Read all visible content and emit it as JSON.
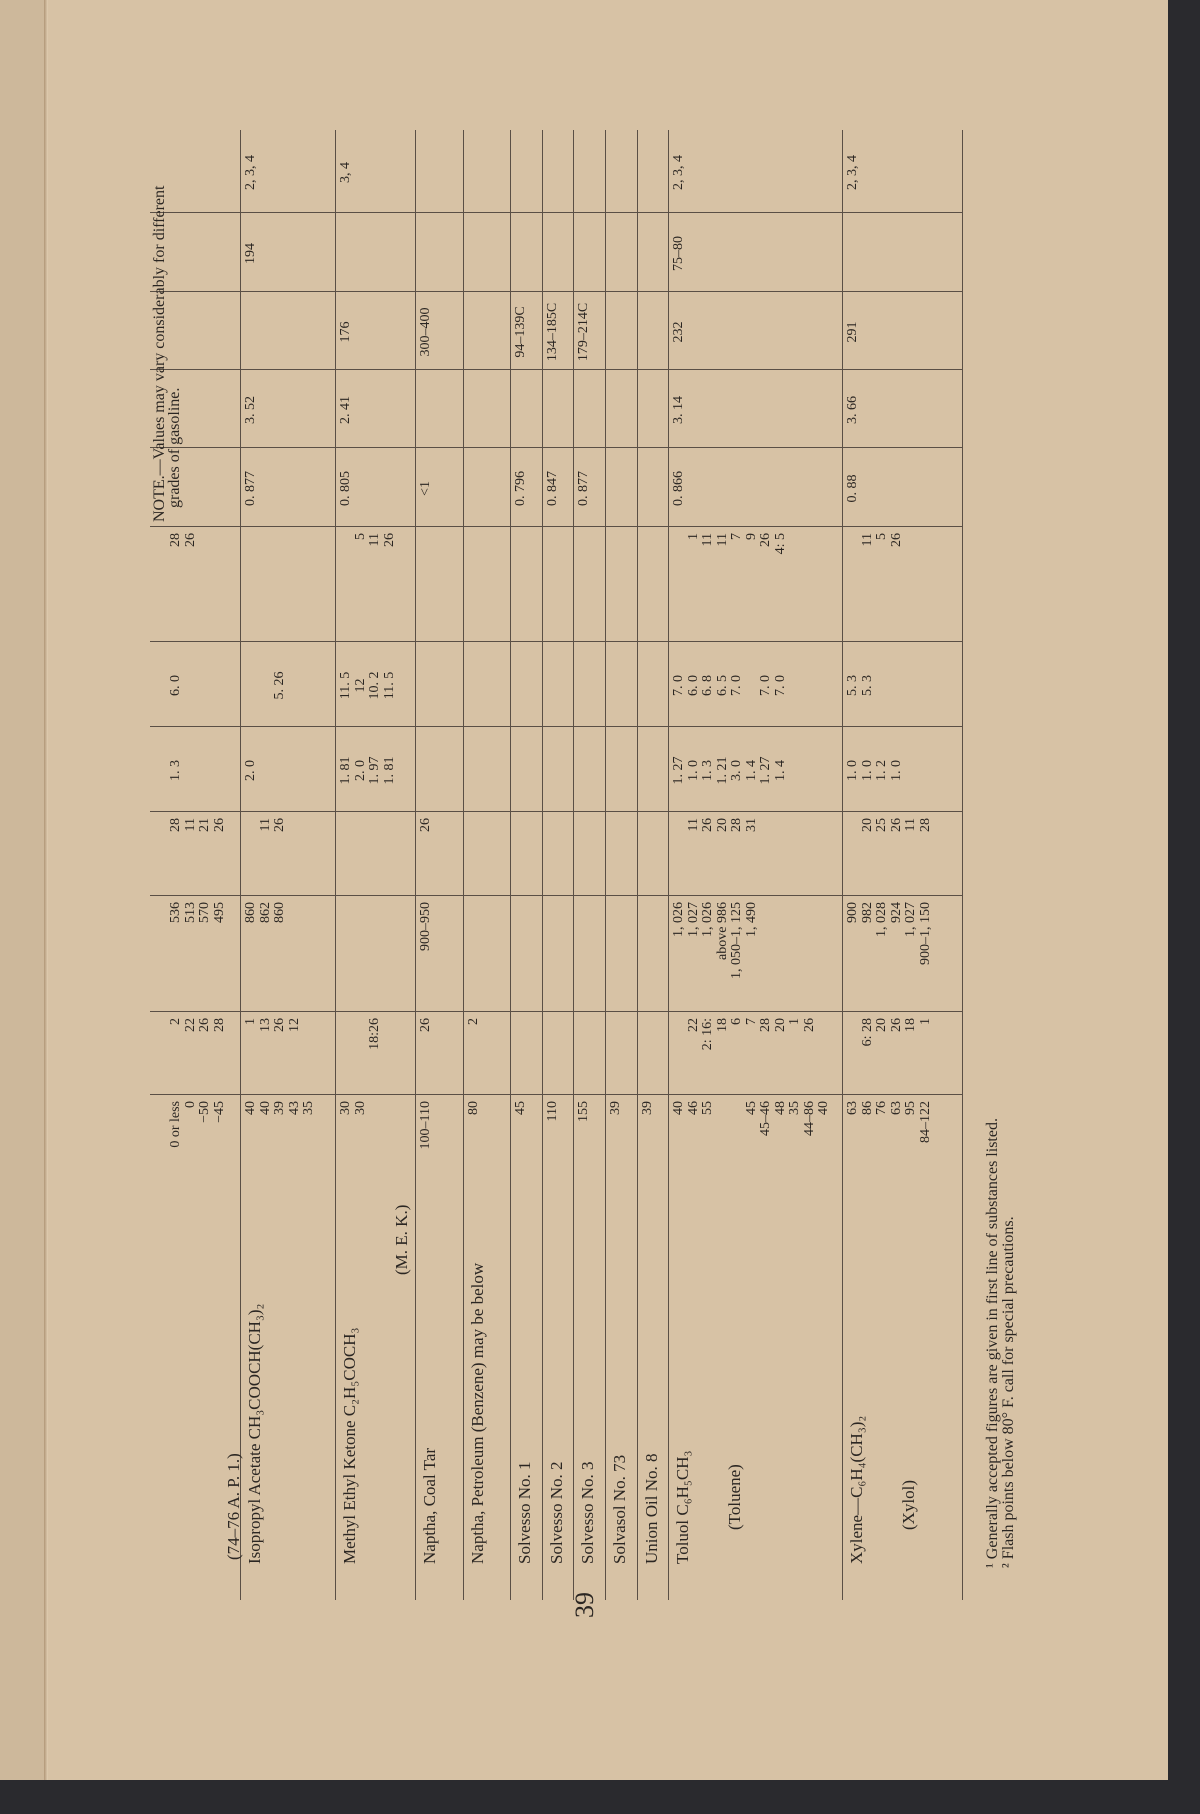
{
  "page_number": "39",
  "note": [
    "NOTE.—Values may vary considerably for different",
    "grades of gasoline."
  ],
  "footnotes": [
    "¹ Generally accepted figures are given in first line of substances listed.",
    "² Flash points below 80° F. call for special precautions."
  ],
  "rows": [
    {
      "name": "",
      "alt": "(74–76 A. P. 1.)",
      "flash": [
        "0 or less",
        "0",
        "−50",
        "−45"
      ],
      "ref1": [
        "2",
        "22",
        "26",
        "28"
      ],
      "ign": [
        "536",
        "513",
        "570",
        "495"
      ],
      "ref2": [
        "28",
        "11",
        "21",
        "26"
      ],
      "lel": [
        "1. 3"
      ],
      "uel": [
        "6. 0"
      ],
      "ref3": [
        "28",
        "26"
      ],
      "sg": [],
      "vd": [],
      "bp": [],
      "c11": [],
      "c12": []
    },
    {
      "name": "Isopropyl Acetate CH₃COOCH(CH₃)₂",
      "alt": "",
      "flash": [
        "40",
        "40",
        "39",
        "43",
        "35"
      ],
      "ref1": [
        "1",
        "13",
        "26",
        "12"
      ],
      "ign": [
        "860",
        "862",
        "860"
      ],
      "ref2": [
        "",
        "11",
        "26"
      ],
      "lel": [
        "2. 0"
      ],
      "uel": [
        "",
        "",
        "5. 26"
      ],
      "ref3": [],
      "sg": [
        "0. 877"
      ],
      "vd": [
        "3. 52"
      ],
      "bp": [],
      "c11": [
        "194"
      ],
      "c12": [
        "2, 3, 4"
      ]
    },
    {
      "name": "Methyl Ethyl Ketone C₂H₅COCH₃",
      "alt": "(M. E. K.)",
      "flash": [
        "30",
        "30"
      ],
      "ref1": [
        "",
        "",
        "18:26"
      ],
      "ign": [],
      "ref2": [],
      "lel": [
        "1. 81",
        "2. 0",
        "1. 97",
        "1. 81"
      ],
      "uel": [
        "11. 5",
        "12",
        "10. 2",
        "11. 5"
      ],
      "ref3": [
        "",
        "5",
        "11",
        "26"
      ],
      "sg": [
        "0. 805"
      ],
      "vd": [
        "2. 41"
      ],
      "bp": [
        "176"
      ],
      "c11": [],
      "c12": [
        "3, 4"
      ]
    },
    {
      "name": "Naptha, Coal Tar",
      "alt": "",
      "flash": [
        "100–110"
      ],
      "ref1": [
        "26"
      ],
      "ign": [
        "900–950"
      ],
      "ref2": [
        "26"
      ],
      "lel": [],
      "uel": [],
      "ref3": [],
      "sg": [
        "<1"
      ],
      "vd": [],
      "bp": [
        "300–400"
      ],
      "c11": [],
      "c12": []
    },
    {
      "name": "Naptha, Petroleum (Benzene) may be below",
      "alt": "",
      "flash": [
        "80"
      ],
      "ref1": [
        "2"
      ],
      "ign": [],
      "ref2": [],
      "lel": [],
      "uel": [],
      "ref3": [],
      "sg": [],
      "vd": [],
      "bp": [],
      "c11": [],
      "c12": []
    },
    {
      "name": "Solvesso No. 1",
      "alt": "",
      "flash": [
        "45"
      ],
      "ref1": [],
      "ign": [],
      "ref2": [],
      "lel": [],
      "uel": [],
      "ref3": [],
      "sg": [
        "0. 796"
      ],
      "vd": [],
      "bp": [
        "94–139C"
      ],
      "c11": [],
      "c12": []
    },
    {
      "name": "Solvesso No. 2",
      "alt": "",
      "flash": [
        "110"
      ],
      "ref1": [],
      "ign": [],
      "ref2": [],
      "lel": [],
      "uel": [],
      "ref3": [],
      "sg": [
        "0. 847"
      ],
      "vd": [],
      "bp": [
        "134–185C"
      ],
      "c11": [],
      "c12": []
    },
    {
      "name": "Solvesso No. 3",
      "alt": "",
      "flash": [
        "155"
      ],
      "ref1": [],
      "ign": [],
      "ref2": [],
      "lel": [],
      "uel": [],
      "ref3": [],
      "sg": [
        "0. 877"
      ],
      "vd": [],
      "bp": [
        "179–214C"
      ],
      "c11": [],
      "c12": []
    },
    {
      "name": "Solvasol No. 73",
      "alt": "",
      "flash": [
        "39"
      ],
      "ref1": [],
      "ign": [],
      "ref2": [],
      "lel": [],
      "uel": [],
      "ref3": [],
      "sg": [],
      "vd": [],
      "bp": [],
      "c11": [],
      "c12": []
    },
    {
      "name": "Union Oil No. 8",
      "alt": "",
      "flash": [
        "39"
      ],
      "ref1": [],
      "ign": [],
      "ref2": [],
      "lel": [],
      "uel": [],
      "ref3": [],
      "sg": [],
      "vd": [],
      "bp": [],
      "c11": [],
      "c12": []
    },
    {
      "name": "Toluol C₆H₅CH₃",
      "alt": "(Toluene)",
      "flash": [
        "40",
        "46",
        "55",
        "",
        "",
        "45",
        "45–46",
        "48",
        "35",
        "44–86",
        "40"
      ],
      "ref1": [
        "",
        "22",
        "2: 16:",
        "18",
        "6",
        "7",
        "28",
        "20",
        "1",
        "26"
      ],
      "ign": [
        "1, 026",
        "1, 027",
        "1, 026",
        "above 986",
        "1, 050–1, 125",
        "1, 490"
      ],
      "ref2": [
        "",
        "11",
        "26",
        "20",
        "28",
        "31"
      ],
      "lel": [
        "1. 27",
        "1. 0",
        "1. 3",
        "1. 21",
        "3. 0",
        "1. 4",
        "1. 27",
        "1. 4"
      ],
      "uel": [
        "7. 0",
        "6. 0",
        "6. 8",
        "6. 5",
        "7. 0",
        "",
        "7. 0",
        "7. 0"
      ],
      "ref3": [
        "",
        "1",
        "11",
        "11",
        "7",
        "9",
        "26",
        "4: 5"
      ],
      "sg": [
        "0. 866"
      ],
      "vd": [
        "3. 14"
      ],
      "bp": [
        "232"
      ],
      "c11": [
        "75–80"
      ],
      "c12": [
        "2, 3, 4"
      ]
    },
    {
      "name": "Xylene—C₆H₄(CH₃)₂",
      "alt": "(Xylol)",
      "flash": [
        "63",
        "86",
        "76",
        "63",
        "95",
        "84–122"
      ],
      "ref1": [
        "",
        "6: 28",
        "20",
        "26",
        "18",
        "1"
      ],
      "ign": [
        "900",
        "982",
        "1, 028",
        "924",
        "1, 027",
        "900–1, 150"
      ],
      "ref2": [
        "",
        "20",
        "25",
        "26",
        "11",
        "28"
      ],
      "lel": [
        "1. 0",
        "1. 0",
        "1. 2",
        "1. 0"
      ],
      "uel": [
        "5. 3",
        "5. 3"
      ],
      "ref3": [
        "",
        "11",
        "5",
        "26"
      ],
      "sg": [
        "0. 88"
      ],
      "vd": [
        "3. 66"
      ],
      "bp": [
        "291"
      ],
      "c11": [],
      "c12": [
        "2, 3, 4"
      ]
    }
  ],
  "colors": {
    "paper": "#d7c2a5",
    "ink": "#2b2622",
    "background": "#2a2a2e"
  }
}
